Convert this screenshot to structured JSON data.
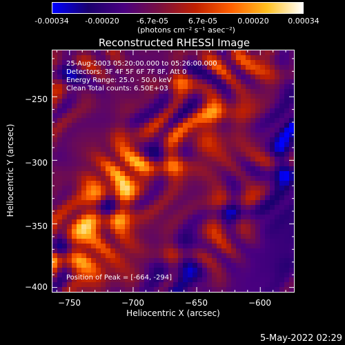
{
  "colorbar": {
    "ticks": [
      "-0.00034",
      "-0.00020",
      "-6.7e-05",
      "6.7e-05",
      "0.00020",
      "0.00034"
    ],
    "units": "(photons cm⁻² s⁻¹ asec⁻²)",
    "colors": [
      "#0000ff",
      "#1a006e",
      "#4a0080",
      "#7a1040",
      "#c02000",
      "#ff6000",
      "#ffc020",
      "#ffffff"
    ]
  },
  "chart_data": {
    "type": "heatmap",
    "title": "Reconstructed RHESSI Image",
    "xlabel": "Heliocentric X (arcsec)",
    "ylabel": "Heliocentric Y (arcsec)",
    "xlim": [
      -764,
      -573
    ],
    "ylim": [
      -404,
      -213
    ],
    "x_ticks": [
      -750,
      -700,
      -650,
      -600
    ],
    "y_ticks": [
      -250,
      -300,
      -350,
      -400
    ],
    "x_tick_labels": [
      "−750",
      "−700",
      "−650",
      "−600"
    ],
    "y_tick_labels": [
      "−250",
      "−300",
      "−350",
      "−400"
    ],
    "value_range": [
      -0.00034,
      0.00034
    ],
    "annotations": [
      "25-Aug-2003 05:20:00.000 to 05:26:00.000",
      "Detectors: 3F 4F 5F 6F 7F 8F, Att 0",
      "Energy Range: 25.0 - 50.0 keV",
      "Clean     Total counts: 6.50E+03"
    ],
    "peak_label": "Position of Peak = [-664, -294]",
    "peak": [
      -664,
      -294
    ]
  },
  "footer": {
    "timestamp": "5-May-2022 02:29"
  }
}
